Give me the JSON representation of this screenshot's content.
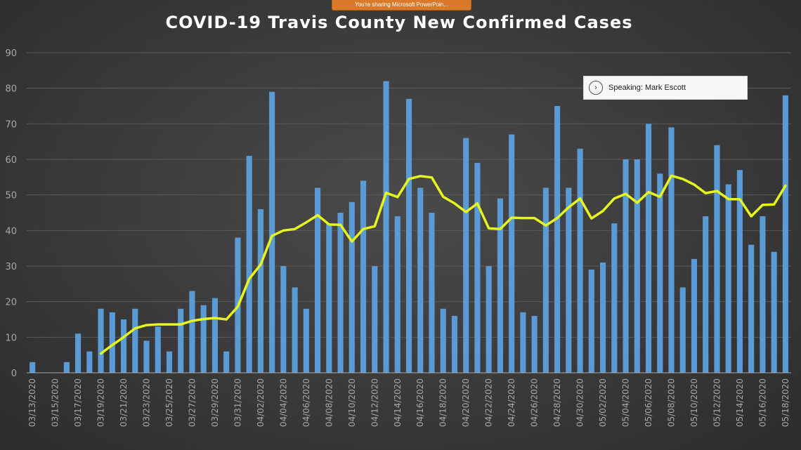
{
  "banner": {
    "text": "You're sharing Microsoft PowerPoin..."
  },
  "speaking": {
    "icon": "chevron-right-icon",
    "text": "Speaking: Mark Escott"
  },
  "colors": {
    "bar": "#5b9bd5",
    "line": "#e6f51e",
    "axis": "#a8a8a8",
    "grid": "#5a5a5a",
    "title": "#ffffff"
  },
  "chart_data": {
    "type": "bar",
    "title": "COVID-19 Travis County New Confirmed Cases",
    "xlabel": "",
    "ylabel": "",
    "ylim": [
      0,
      90
    ],
    "yticks": [
      0,
      10,
      20,
      30,
      40,
      50,
      60,
      70,
      80,
      90
    ],
    "grid": true,
    "categories": [
      "03/13/2020",
      "03/14/2020",
      "03/15/2020",
      "03/16/2020",
      "03/17/2020",
      "03/18/2020",
      "03/19/2020",
      "03/20/2020",
      "03/21/2020",
      "03/22/2020",
      "03/23/2020",
      "03/24/2020",
      "03/25/2020",
      "03/26/2020",
      "03/27/2020",
      "03/28/2020",
      "03/29/2020",
      "03/30/2020",
      "03/31/2020",
      "04/01/2020",
      "04/02/2020",
      "04/03/2020",
      "04/04/2020",
      "04/05/2020",
      "04/06/2020",
      "04/07/2020",
      "04/08/2020",
      "04/09/2020",
      "04/10/2020",
      "04/11/2020",
      "04/12/2020",
      "04/13/2020",
      "04/14/2020",
      "04/15/2020",
      "04/16/2020",
      "04/17/2020",
      "04/18/2020",
      "04/19/2020",
      "04/20/2020",
      "04/21/2020",
      "04/22/2020",
      "04/23/2020",
      "04/24/2020",
      "04/25/2020",
      "04/26/2020",
      "04/27/2020",
      "04/28/2020",
      "04/29/2020",
      "04/30/2020",
      "05/01/2020",
      "05/02/2020",
      "05/03/2020",
      "05/04/2020",
      "05/05/2020",
      "05/06/2020",
      "05/07/2020",
      "05/08/2020",
      "05/09/2020",
      "05/10/2020",
      "05/11/2020",
      "05/12/2020",
      "05/13/2020",
      "05/14/2020",
      "05/15/2020",
      "05/16/2020",
      "05/17/2020",
      "05/18/2020"
    ],
    "tick_labels": [
      "03/13/2020",
      "03/15/2020",
      "03/17/2020",
      "03/19/2020",
      "03/21/2020",
      "03/23/2020",
      "03/25/2020",
      "03/27/2020",
      "03/29/2020",
      "03/31/2020",
      "04/02/2020",
      "04/04/2020",
      "04/06/2020",
      "04/08/2020",
      "04/10/2020",
      "04/12/2020",
      "04/14/2020",
      "04/16/2020",
      "04/18/2020",
      "04/20/2020",
      "04/22/2020",
      "04/24/2020",
      "04/26/2020",
      "04/28/2020",
      "04/30/2020",
      "05/02/2020",
      "05/04/2020",
      "05/06/2020",
      "05/08/2020",
      "05/10/2020",
      "05/12/2020",
      "05/14/2020",
      "05/16/2020",
      "05/18/2020"
    ],
    "series": [
      {
        "type": "bar",
        "values": [
          3,
          0,
          0,
          3,
          11,
          6,
          18,
          17,
          15,
          18,
          9,
          13,
          6,
          18,
          23,
          19,
          21,
          6,
          38,
          61,
          46,
          79,
          30,
          24,
          18,
          52,
          42,
          45,
          48,
          54,
          30,
          82,
          44,
          77,
          52,
          45,
          18,
          16,
          66,
          59,
          30,
          49,
          67,
          17,
          16,
          52,
          75,
          52,
          63,
          29,
          31,
          42,
          60,
          60,
          70,
          56,
          69,
          24,
          32,
          44,
          64,
          53,
          57,
          36,
          44,
          34,
          78
        ]
      },
      {
        "type": "line",
        "values": [
          null,
          null,
          null,
          null,
          null,
          null,
          5.4,
          7.8,
          10,
          12.5,
          13.4,
          13.6,
          13.6,
          13.6,
          14.6,
          15.1,
          15.4,
          15,
          18.6,
          26.4,
          30.4,
          38.5,
          40,
          40.4,
          42.3,
          44.3,
          41.7,
          41.6,
          36.9,
          40.4,
          41.2,
          50.6,
          49.4,
          54.5,
          55.3,
          54.9,
          49.5,
          47.6,
          45.2,
          47.6,
          40.6,
          40.4,
          43.6,
          43.5,
          43.5,
          41.4,
          43.5,
          46.5,
          49,
          43.4,
          45.5,
          49,
          50.3,
          47.8,
          50.8,
          49.5,
          55.4,
          54.5,
          52.9,
          50.5,
          51.1,
          48.8,
          48.8,
          44,
          47.2,
          47.3,
          52.6
        ]
      }
    ]
  }
}
